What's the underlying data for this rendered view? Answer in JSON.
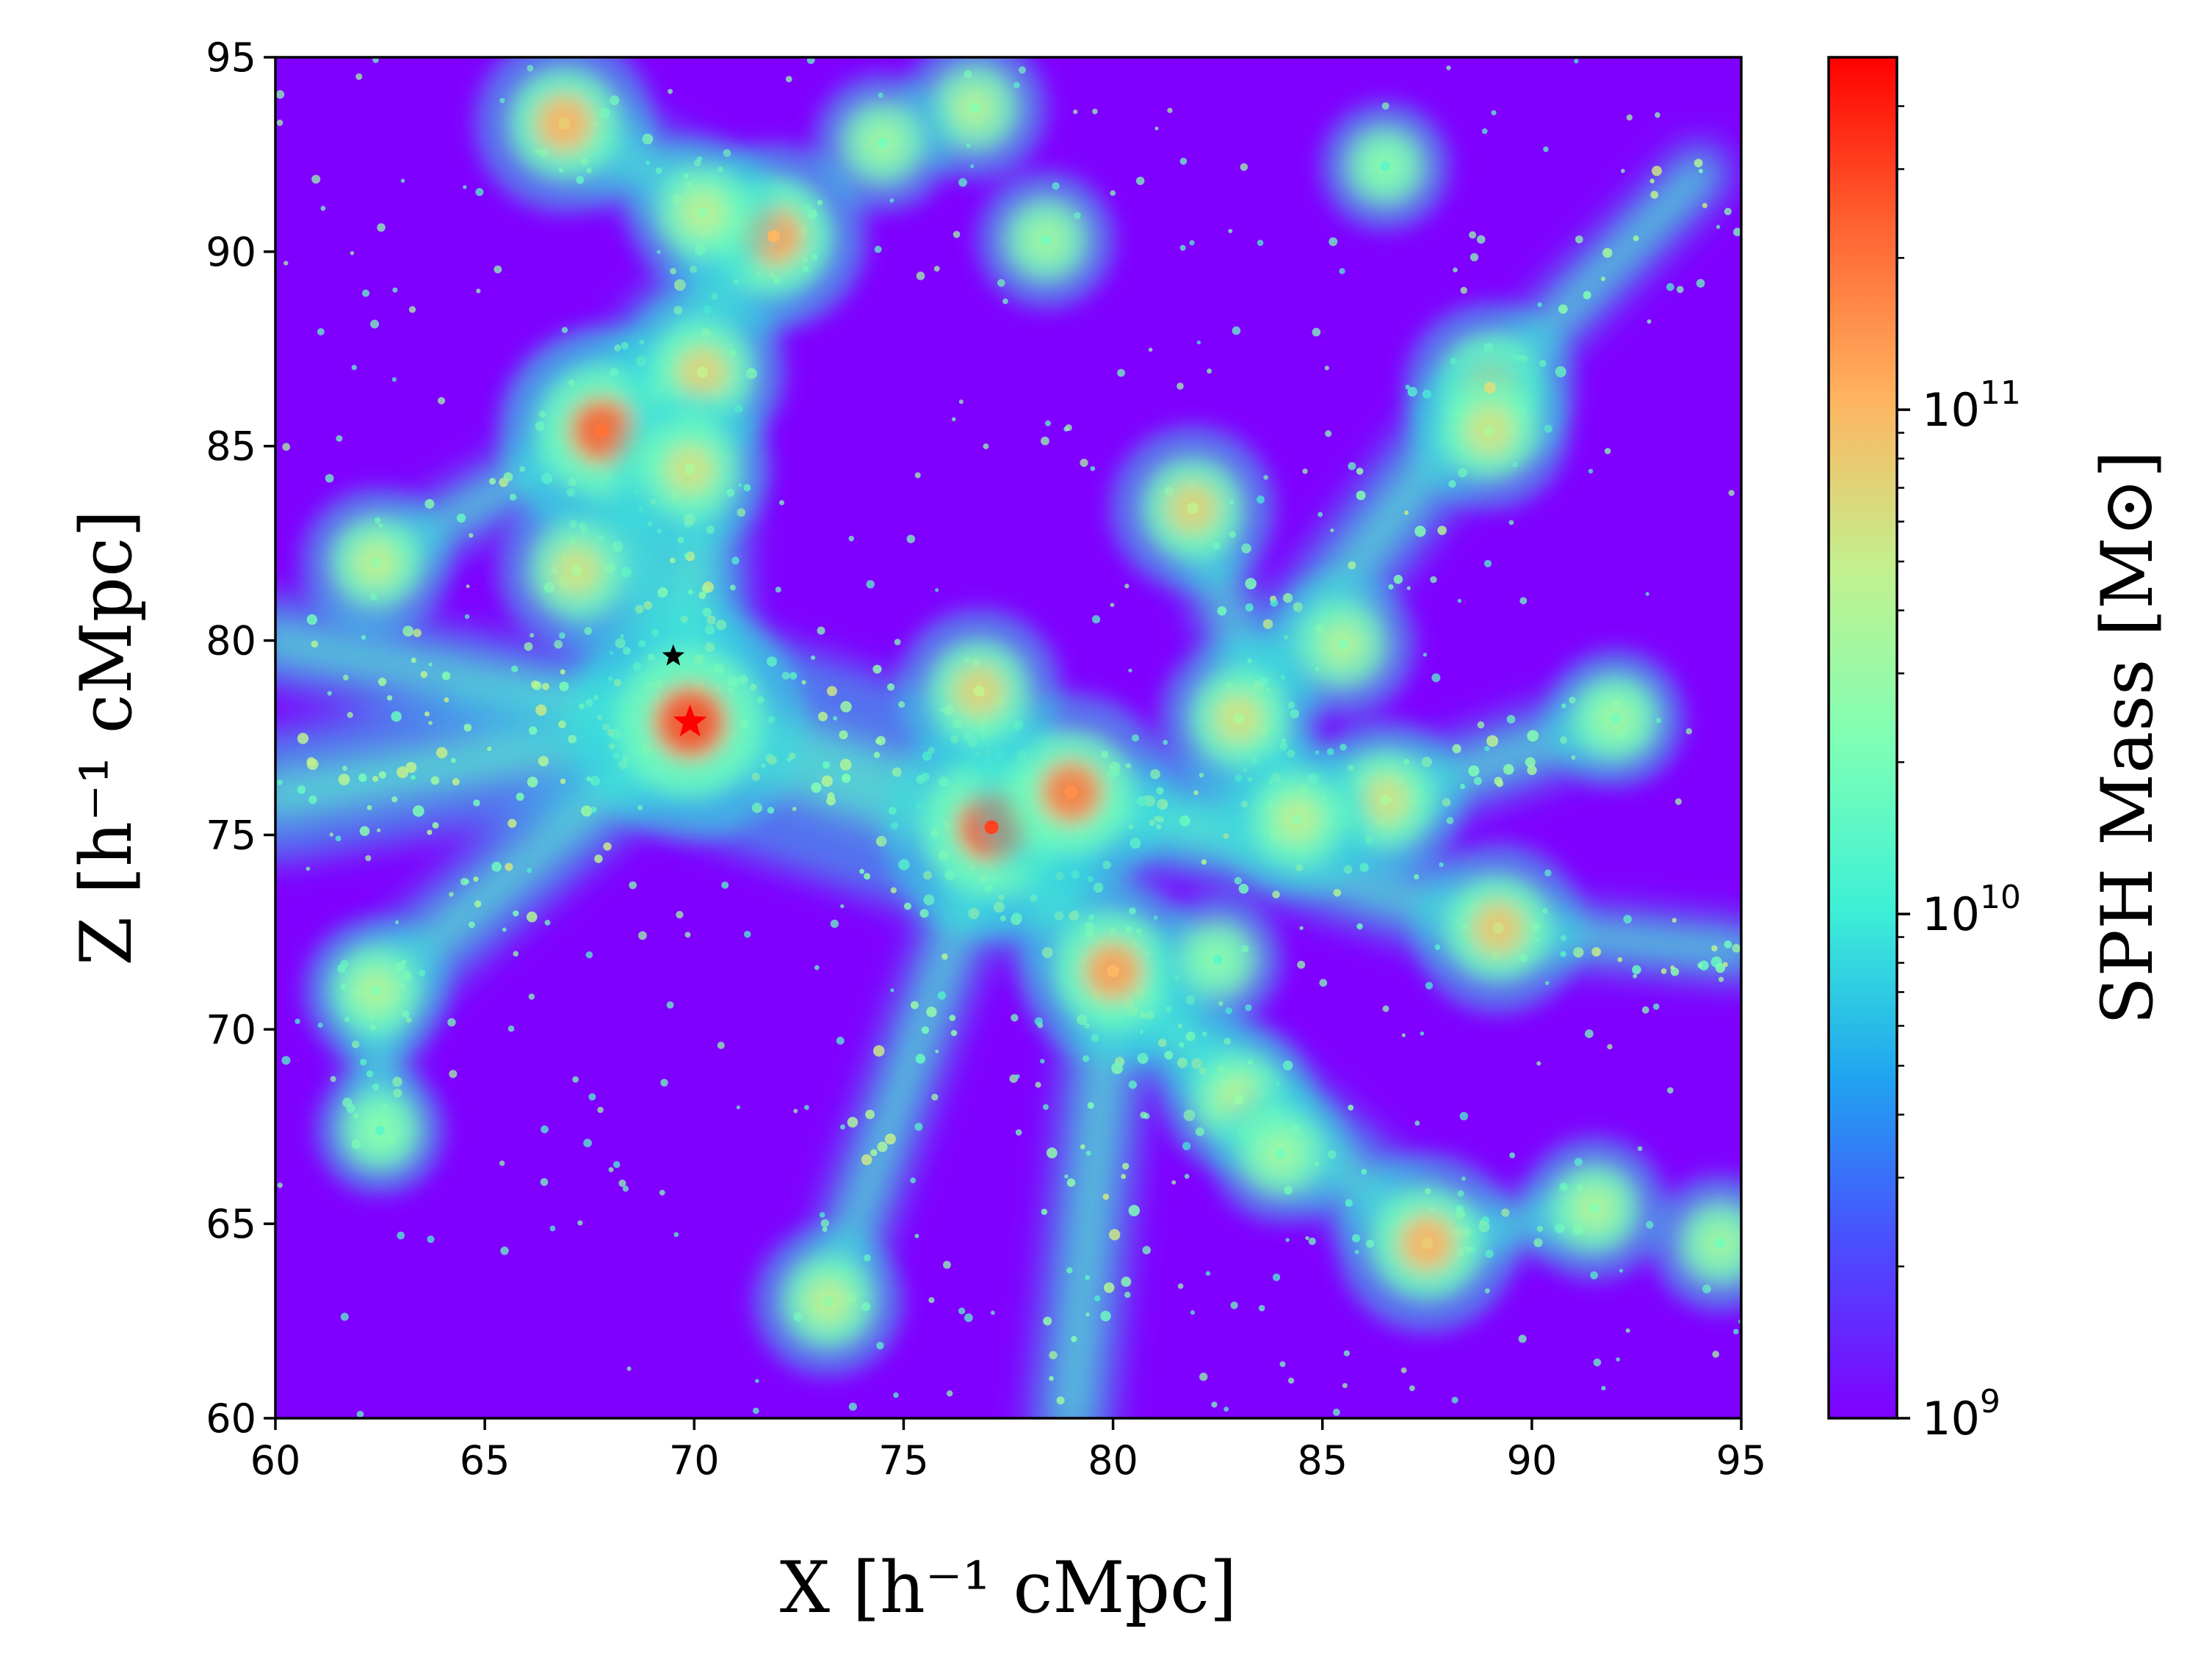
{
  "chart_data": {
    "type": "heatmap",
    "title": "",
    "xlabel": "X [h⁻¹ cMpc]",
    "ylabel": "Z [h⁻¹ cMpc]",
    "xlim": [
      60,
      95
    ],
    "ylim": [
      60,
      95
    ],
    "xticks": [
      "60",
      "65",
      "70",
      "75",
      "80",
      "85",
      "90",
      "95"
    ],
    "yticks": [
      "60",
      "65",
      "70",
      "75",
      "80",
      "85",
      "90",
      "95"
    ],
    "colorbar": {
      "label": "SPH Mass [M⊙]",
      "scale": "log",
      "range": [
        1000000000.0,
        500000000000.0
      ],
      "ticks": [
        {
          "value": 1000000000.0,
          "label": "10^9"
        },
        {
          "value": 10000000000.0,
          "label": "10^10"
        },
        {
          "value": 100000000000.0,
          "label": "10^11"
        }
      ],
      "colormap": "rainbow",
      "colors": [
        "#8000ff",
        "#4c4cff",
        "#20a4f0",
        "#3ef0d6",
        "#80ffb4",
        "#c3f08e",
        "#ffb360",
        "#ff6432",
        "#ff0000"
      ]
    },
    "background_color": "#8000ff",
    "markers": [
      {
        "x": 69.5,
        "y": 79.6,
        "symbol": "star",
        "color": "#000000"
      },
      {
        "x": 69.9,
        "y": 77.9,
        "symbol": "star",
        "color": "#ff0000"
      }
    ],
    "halos": [
      {
        "x": 69.9,
        "y": 77.9,
        "mass": 500000000000.0
      },
      {
        "x": 77.1,
        "y": 75.2,
        "mass": 300000000000.0
      },
      {
        "x": 67.8,
        "y": 85.4,
        "mass": 200000000000.0
      },
      {
        "x": 79.0,
        "y": 76.1,
        "mass": 150000000000.0
      },
      {
        "x": 80.0,
        "y": 71.5,
        "mass": 100000000000.0
      },
      {
        "x": 71.9,
        "y": 90.4,
        "mass": 100000000000.0
      },
      {
        "x": 66.9,
        "y": 93.3,
        "mass": 80000000000.0
      },
      {
        "x": 87.5,
        "y": 64.5,
        "mass": 80000000000.0
      },
      {
        "x": 89.2,
        "y": 72.6,
        "mass": 60000000000.0
      },
      {
        "x": 76.8,
        "y": 78.7,
        "mass": 50000000000.0
      },
      {
        "x": 70.2,
        "y": 86.9,
        "mass": 50000000000.0
      },
      {
        "x": 81.9,
        "y": 83.4,
        "mass": 50000000000.0
      },
      {
        "x": 89.0,
        "y": 86.5,
        "mass": 60000000000.0
      },
      {
        "x": 89.0,
        "y": 85.4,
        "mass": 40000000000.0
      },
      {
        "x": 83.0,
        "y": 78.0,
        "mass": 40000000000.0
      },
      {
        "x": 86.5,
        "y": 75.9,
        "mass": 40000000000.0
      },
      {
        "x": 84.4,
        "y": 75.4,
        "mass": 30000000000.0
      },
      {
        "x": 83.0,
        "y": 68.2,
        "mass": 30000000000.0
      },
      {
        "x": 73.2,
        "y": 63.0,
        "mass": 30000000000.0
      },
      {
        "x": 62.4,
        "y": 82.0,
        "mass": 30000000000.0
      },
      {
        "x": 85.5,
        "y": 79.9,
        "mass": 25000000000.0
      },
      {
        "x": 76.7,
        "y": 93.7,
        "mass": 25000000000.0
      },
      {
        "x": 67.2,
        "y": 81.8,
        "mass": 40000000000.0
      },
      {
        "x": 69.9,
        "y": 84.4,
        "mass": 40000000000.0
      },
      {
        "x": 70.2,
        "y": 91.0,
        "mass": 30000000000.0
      },
      {
        "x": 91.5,
        "y": 65.4,
        "mass": 25000000000.0
      },
      {
        "x": 62.4,
        "y": 71.0,
        "mass": 25000000000.0
      },
      {
        "x": 84.0,
        "y": 66.8,
        "mass": 20000000000.0
      },
      {
        "x": 92.0,
        "y": 78.0,
        "mass": 20000000000.0
      },
      {
        "x": 78.4,
        "y": 90.3,
        "mass": 20000000000.0
      },
      {
        "x": 74.5,
        "y": 92.8,
        "mass": 20000000000.0
      },
      {
        "x": 94.5,
        "y": 64.5,
        "mass": 20000000000.0
      },
      {
        "x": 82.5,
        "y": 71.8,
        "mass": 15000000000.0
      },
      {
        "x": 62.5,
        "y": 67.4,
        "mass": 15000000000.0
      },
      {
        "x": 86.5,
        "y": 92.2,
        "mass": 15000000000.0
      }
    ],
    "filaments": [
      {
        "from": [
          69.9,
          77.9
        ],
        "to": [
          77.1,
          75.2
        ],
        "width": 3.2
      },
      {
        "from": [
          69.9,
          77.9
        ],
        "to": [
          67.8,
          85.4
        ],
        "width": 2.6
      },
      {
        "from": [
          67.8,
          85.4
        ],
        "to": [
          71.9,
          90.4
        ],
        "width": 1.8
      },
      {
        "from": [
          71.9,
          90.4
        ],
        "to": [
          66.9,
          93.3
        ],
        "width": 1.4
      },
      {
        "from": [
          69.9,
          77.9
        ],
        "to": [
          70.2,
          86.9
        ],
        "width": 1.6
      },
      {
        "from": [
          77.1,
          75.2
        ],
        "to": [
          80.0,
          71.5
        ],
        "width": 2.0
      },
      {
        "from": [
          80.0,
          71.5
        ],
        "to": [
          87.5,
          64.5
        ],
        "width": 1.5
      },
      {
        "from": [
          77.1,
          75.2
        ],
        "to": [
          86.5,
          75.9
        ],
        "width": 1.6
      },
      {
        "from": [
          86.5,
          75.9
        ],
        "to": [
          92.0,
          78.0
        ],
        "width": 1.2
      },
      {
        "from": [
          79.0,
          76.1
        ],
        "to": [
          89.2,
          72.6
        ],
        "width": 1.3
      },
      {
        "from": [
          83.0,
          78.0
        ],
        "to": [
          89.0,
          86.5
        ],
        "width": 1.4
      },
      {
        "from": [
          69.9,
          77.9
        ],
        "to": [
          60.0,
          76.0
        ],
        "width": 2.0
      },
      {
        "from": [
          69.9,
          77.9
        ],
        "to": [
          60.0,
          80.0
        ],
        "width": 1.4
      },
      {
        "from": [
          69.9,
          77.9
        ],
        "to": [
          62.4,
          71.0
        ],
        "width": 1.4
      },
      {
        "from": [
          62.4,
          71.0
        ],
        "to": [
          62.5,
          67.4
        ],
        "width": 1.0
      },
      {
        "from": [
          80.0,
          71.5
        ],
        "to": [
          83.0,
          68.2
        ],
        "width": 1.3
      },
      {
        "from": [
          80.0,
          71.5
        ],
        "to": [
          79.0,
          60.0
        ],
        "width": 1.3
      },
      {
        "from": [
          77.1,
          75.2
        ],
        "to": [
          73.2,
          63.0
        ],
        "width": 1.1
      },
      {
        "from": [
          89.0,
          86.5
        ],
        "to": [
          94.0,
          92.0
        ],
        "width": 1.0
      },
      {
        "from": [
          81.9,
          83.4
        ],
        "to": [
          84.4,
          75.4
        ],
        "width": 1.0
      },
      {
        "from": [
          70.2,
          86.9
        ],
        "to": [
          62.4,
          82.0
        ],
        "width": 1.0
      },
      {
        "from": [
          77.1,
          75.2
        ],
        "to": [
          76.8,
          78.7
        ],
        "width": 1.2
      },
      {
        "from": [
          89.2,
          72.6
        ],
        "to": [
          95.0,
          72.0
        ],
        "width": 1.0
      },
      {
        "from": [
          87.5,
          64.5
        ],
        "to": [
          91.5,
          65.4
        ],
        "width": 0.9
      }
    ]
  }
}
